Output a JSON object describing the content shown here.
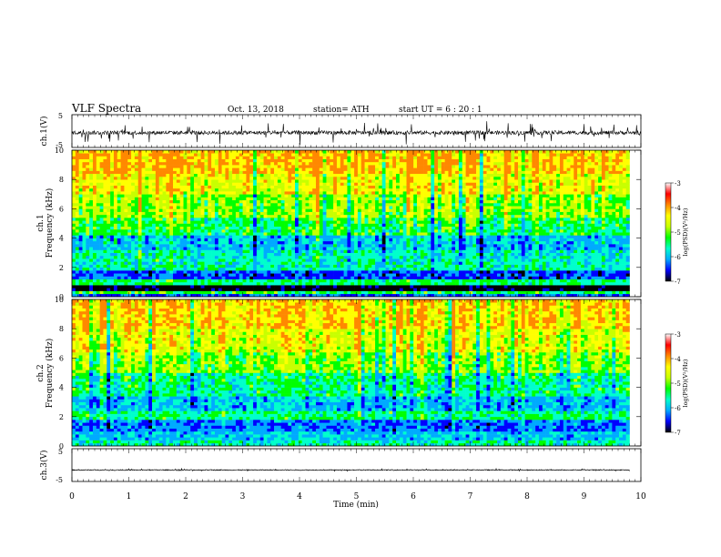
{
  "header": {
    "title": "VLF Spectra",
    "date": "Oct. 13, 2018",
    "station": "station= ATH",
    "start_ut": "start  UT  =   6  : 20 : 1"
  },
  "chart_data": [
    {
      "type": "line",
      "name": "ch.1 waveform",
      "ylabel": "ch.1(V)",
      "ylim": [
        -5,
        5
      ],
      "yticks": [
        5,
        -5
      ],
      "baseline": -0.5,
      "noise_amplitude": 1.2,
      "spike_amplitude": 3.5,
      "xlim": [
        0,
        10
      ]
    },
    {
      "type": "heatmap",
      "name": "ch.1 spectrogram",
      "ylabel_line1": "ch.1",
      "ylabel_line2": "Frequency (kHz)",
      "ylim": [
        0,
        10
      ],
      "yticks": [
        0,
        2,
        4,
        6,
        8,
        10
      ],
      "xlim": [
        0,
        9.8
      ],
      "colorbar": {
        "label": "log(PSD)(V²/Hz)",
        "range": [
          -7,
          -3
        ],
        "ticks": [
          -3,
          -4,
          -5,
          -6,
          -7
        ],
        "colors": [
          "#000000",
          "#0000ff",
          "#00aaff",
          "#00ffcc",
          "#00ff00",
          "#c8ff00",
          "#ffff00",
          "#ff8800",
          "#ff0000",
          "#ffffff"
        ]
      },
      "bands": [
        {
          "from": 0.0,
          "to": 0.3,
          "level": -6.0
        },
        {
          "from": 0.3,
          "to": 0.5,
          "level": -4.8
        },
        {
          "from": 0.5,
          "to": 0.8,
          "level": -6.8
        },
        {
          "from": 0.8,
          "to": 1.2,
          "level": -5.0
        },
        {
          "from": 1.2,
          "to": 1.9,
          "level": -6.1
        },
        {
          "from": 1.9,
          "to": 2.3,
          "level": -5.2
        },
        {
          "from": 2.3,
          "to": 3.2,
          "level": -5.3
        },
        {
          "from": 3.2,
          "to": 4.2,
          "level": -5.6
        },
        {
          "from": 4.2,
          "to": 5.5,
          "level": -4.9
        },
        {
          "from": 5.5,
          "to": 7.0,
          "level": -4.4
        },
        {
          "from": 7.0,
          "to": 8.5,
          "level": -3.9
        },
        {
          "from": 8.5,
          "to": 10.0,
          "level": -3.5
        }
      ]
    },
    {
      "type": "heatmap",
      "name": "ch.2 spectrogram",
      "ylabel_line1": "ch.2",
      "ylabel_line2": "Frequency (kHz)",
      "ylim": [
        0,
        10
      ],
      "yticks": [
        0,
        2,
        4,
        6,
        8,
        10
      ],
      "xlim": [
        0,
        9.8
      ],
      "colorbar": {
        "label": "log(PSD)(V²/Hz)",
        "range": [
          -7,
          -3
        ],
        "ticks": [
          -3,
          -4,
          -5,
          -6,
          -7
        ],
        "colors": [
          "#000000",
          "#0000ff",
          "#00aaff",
          "#00ffcc",
          "#00ff00",
          "#c8ff00",
          "#ffff00",
          "#ff8800",
          "#ff0000",
          "#ffffff"
        ]
      },
      "bands": [
        {
          "from": 0.0,
          "to": 0.5,
          "level": -5.2
        },
        {
          "from": 0.5,
          "to": 1.0,
          "level": -5.6
        },
        {
          "from": 1.0,
          "to": 1.8,
          "level": -5.9
        },
        {
          "from": 1.8,
          "to": 2.4,
          "level": -5.0
        },
        {
          "from": 2.4,
          "to": 3.5,
          "level": -5.6
        },
        {
          "from": 3.5,
          "to": 5.0,
          "level": -5.1
        },
        {
          "from": 5.0,
          "to": 6.5,
          "level": -4.5
        },
        {
          "from": 6.5,
          "to": 8.0,
          "level": -4.0
        },
        {
          "from": 8.0,
          "to": 10.0,
          "level": -3.6
        }
      ]
    },
    {
      "type": "line",
      "name": "ch.3 waveform",
      "ylabel": "ch.3(V)",
      "ylim": [
        -5,
        5
      ],
      "yticks": [
        5,
        -5
      ],
      "baseline": -1.5,
      "noise_amplitude": 0.25,
      "spike_amplitude": 0.3,
      "xlim": [
        0,
        9.8
      ]
    }
  ],
  "x_axis": {
    "label": "Time  (min)",
    "ticks": [
      0,
      1,
      2,
      3,
      4,
      5,
      6,
      7,
      8,
      9,
      10
    ],
    "range": [
      0,
      10
    ]
  }
}
